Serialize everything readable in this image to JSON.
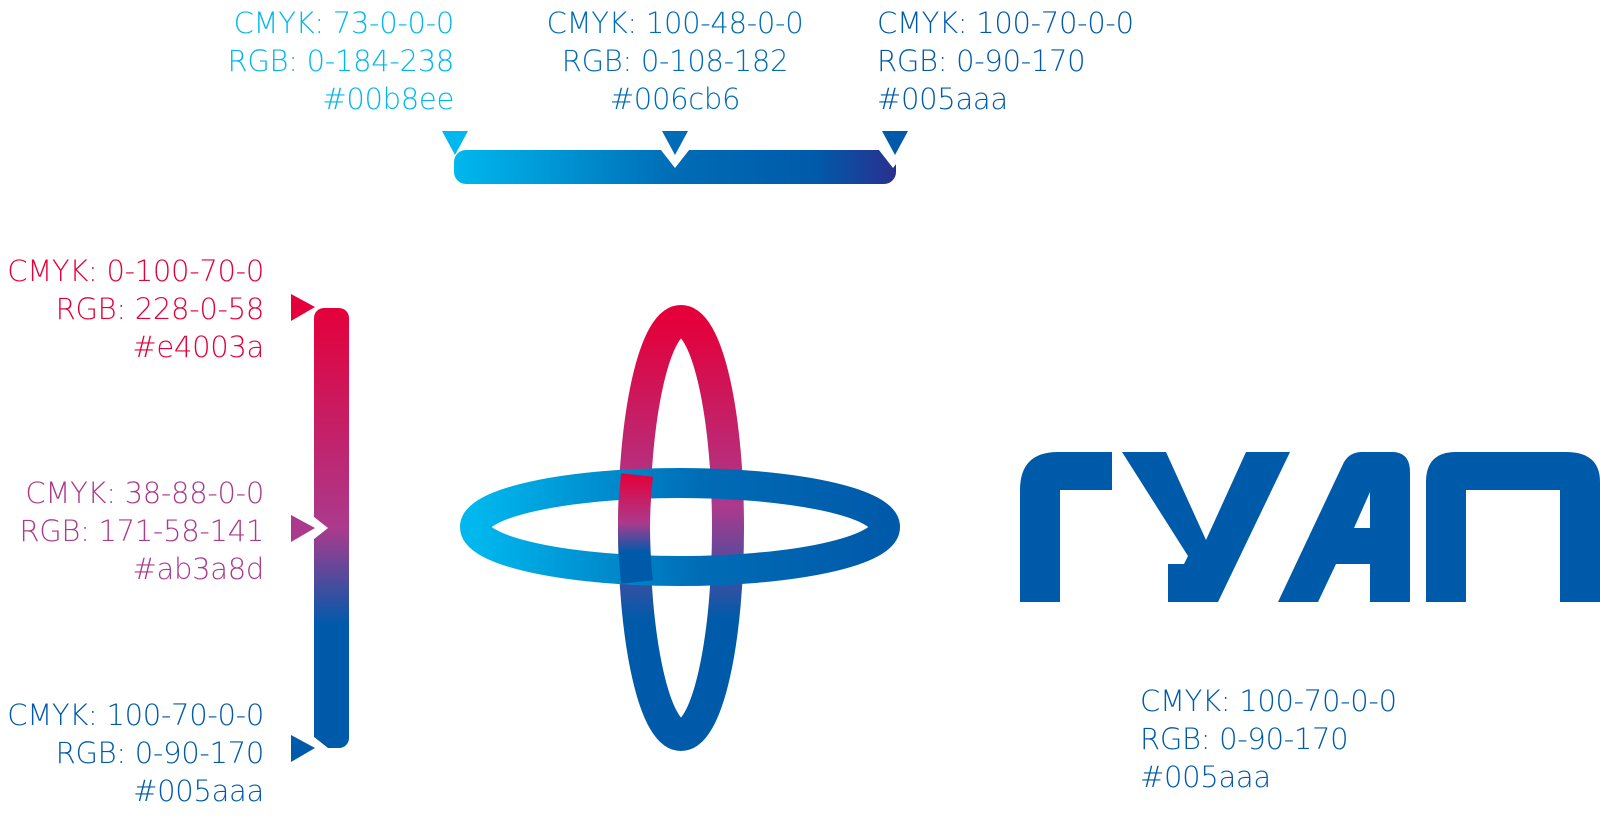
{
  "horizontal_gradient": {
    "stops": [
      {
        "cmyk": "CMYK: 73-0-0-0",
        "rgb": "RGB: 0-184-238",
        "hex": "#00b8ee",
        "color": "#00b8ee"
      },
      {
        "cmyk": "CMYK: 100-48-0-0",
        "rgb": "RGB: 0-108-182",
        "hex": "#006cb6",
        "color": "#006cb6"
      },
      {
        "cmyk": "CMYK: 100-70-0-0",
        "rgb": "RGB: 0-90-170",
        "hex": "#005aaa",
        "color": "#005aaa"
      }
    ],
    "end_color": "#2b2f8f"
  },
  "vertical_gradient": {
    "stops": [
      {
        "cmyk": "CMYK: 0-100-70-0",
        "rgb": "RGB: 228-0-58",
        "hex": "#e4003a",
        "color": "#e4003a"
      },
      {
        "cmyk": "CMYK: 38-88-0-0",
        "rgb": "RGB: 171-58-141",
        "hex": "#ab3a8d",
        "color": "#ab3a8d"
      },
      {
        "cmyk": "CMYK: 100-70-0-0",
        "rgb": "RGB: 0-90-170",
        "hex": "#005aaa",
        "color": "#005aaa"
      }
    ]
  },
  "wordmark": {
    "text": "ГУАП",
    "color": "#005aaa",
    "cmyk": "CMYK: 100-70-0-0",
    "rgb": "RGB: 0-90-170",
    "hex": "#005aaa"
  }
}
